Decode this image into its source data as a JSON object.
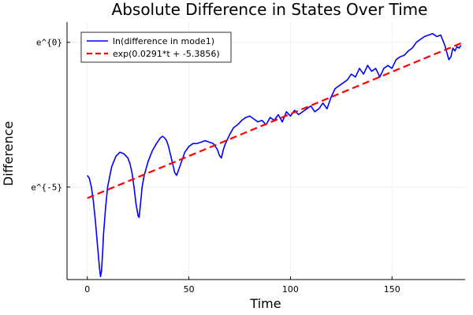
{
  "chart_data": {
    "type": "line",
    "title": "Absolute Difference in States Over Time",
    "xlabel": "Time",
    "ylabel": "Difference",
    "xlim": [
      -10,
      186
    ],
    "ylim": [
      -8.2,
      0.7
    ],
    "x_ticks": [
      0,
      50,
      100,
      150
    ],
    "x_tick_labels": [
      "0",
      "50",
      "100",
      "150"
    ],
    "y_ticks": [
      -5,
      0
    ],
    "y_tick_labels": [
      "e^{-5}",
      "e^{0}"
    ],
    "y_scale": "log (base e)",
    "grid": true,
    "legend_position": "top-left",
    "series": [
      {
        "name": "ln(difference in mode1)",
        "color": "#0000ff",
        "style": "solid",
        "x": [
          0,
          1,
          2,
          3,
          4,
          5,
          6,
          6.5,
          7,
          7.5,
          8,
          9,
          10,
          12,
          14,
          16,
          18,
          20,
          21,
          22,
          23,
          24,
          25,
          25.5,
          26,
          27,
          28,
          30,
          32,
          34,
          36,
          37,
          38,
          39,
          40,
          41,
          42,
          43,
          44,
          45,
          46,
          47,
          48,
          50,
          52,
          54,
          56,
          58,
          60,
          62,
          64,
          65,
          66,
          67,
          68,
          70,
          72,
          74,
          76,
          78,
          80,
          82,
          84,
          86,
          88,
          90,
          92,
          94,
          96,
          98,
          100,
          102,
          104,
          106,
          108,
          110,
          112,
          114,
          116,
          118,
          120,
          122,
          124,
          126,
          128,
          130,
          132,
          134,
          136,
          138,
          140,
          142,
          144,
          146,
          148,
          150,
          152,
          154,
          156,
          158,
          160,
          162,
          164,
          166,
          168,
          170,
          172,
          174,
          176,
          178,
          179,
          180,
          181,
          182,
          183,
          184
        ],
        "y": [
          -4.6,
          -4.7,
          -5.0,
          -5.5,
          -6.2,
          -7.0,
          -7.8,
          -8.1,
          -7.9,
          -7.3,
          -6.6,
          -5.7,
          -5.0,
          -4.3,
          -3.95,
          -3.8,
          -3.85,
          -4.0,
          -4.2,
          -4.5,
          -5.0,
          -5.6,
          -6.0,
          -6.05,
          -5.7,
          -5.0,
          -4.6,
          -4.1,
          -3.75,
          -3.5,
          -3.3,
          -3.25,
          -3.3,
          -3.4,
          -3.6,
          -3.9,
          -4.2,
          -4.5,
          -4.6,
          -4.4,
          -4.2,
          -4.0,
          -3.8,
          -3.6,
          -3.5,
          -3.5,
          -3.45,
          -3.4,
          -3.45,
          -3.5,
          -3.7,
          -3.9,
          -4.0,
          -3.7,
          -3.5,
          -3.2,
          -2.95,
          -2.85,
          -2.7,
          -2.6,
          -2.55,
          -2.65,
          -2.75,
          -2.7,
          -2.85,
          -2.6,
          -2.7,
          -2.5,
          -2.75,
          -2.4,
          -2.55,
          -2.35,
          -2.5,
          -2.4,
          -2.3,
          -2.2,
          -2.4,
          -2.3,
          -2.1,
          -2.3,
          -1.9,
          -1.6,
          -1.5,
          -1.4,
          -1.3,
          -1.1,
          -1.2,
          -0.9,
          -1.1,
          -0.8,
          -1.0,
          -0.9,
          -1.2,
          -0.9,
          -0.8,
          -0.9,
          -0.6,
          -0.5,
          -0.45,
          -0.3,
          -0.2,
          0.0,
          0.1,
          0.2,
          0.25,
          0.3,
          0.2,
          0.25,
          -0.1,
          -0.6,
          -0.5,
          -0.2,
          -0.3,
          -0.15,
          -0.2,
          -0.1
        ]
      },
      {
        "name": "exp(0.0291*t + -5.3856)",
        "color": "#ff0000",
        "style": "dashed",
        "x": [
          0,
          184
        ],
        "y": [
          -5.3856,
          -0.031
        ]
      }
    ]
  }
}
